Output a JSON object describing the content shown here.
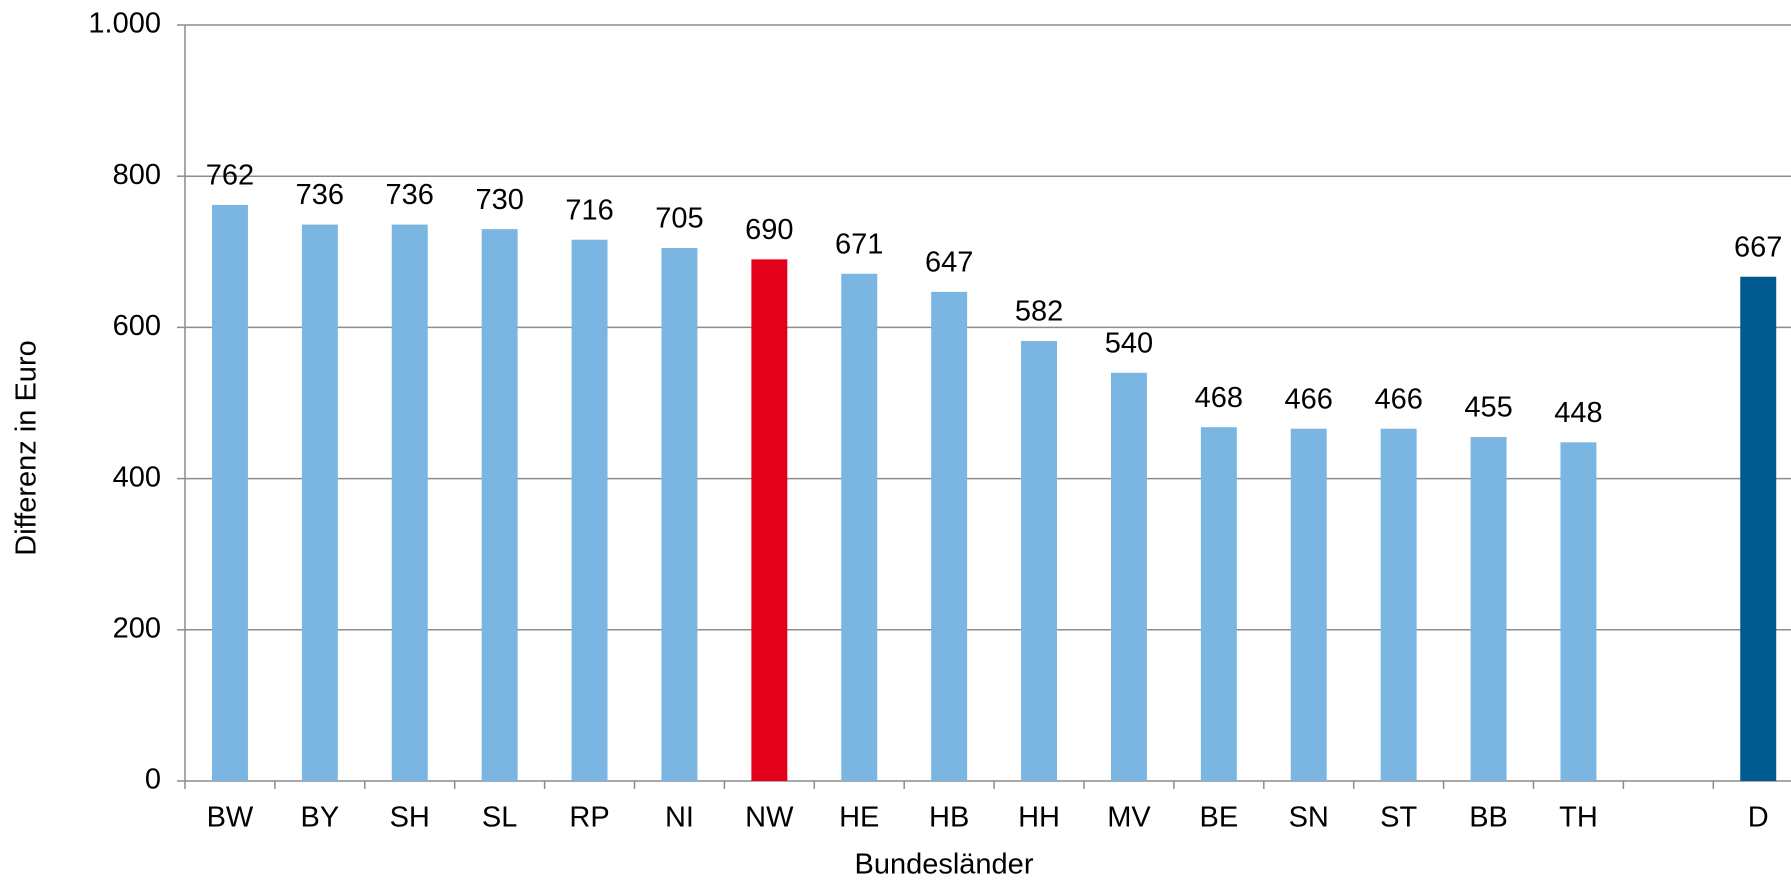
{
  "chart_data": {
    "type": "bar",
    "categories": [
      "BW",
      "BY",
      "SH",
      "SL",
      "RP",
      "NI",
      "NW",
      "HE",
      "HB",
      "HH",
      "MV",
      "BE",
      "SN",
      "ST",
      "BB",
      "TH",
      null,
      "D"
    ],
    "values": [
      762,
      736,
      736,
      730,
      716,
      705,
      690,
      671,
      647,
      582,
      540,
      468,
      466,
      466,
      455,
      448,
      null,
      667
    ],
    "colors": [
      "#7ab6e1",
      "#7ab6e1",
      "#7ab6e1",
      "#7ab6e1",
      "#7ab6e1",
      "#7ab6e1",
      "#e2001a",
      "#7ab6e1",
      "#7ab6e1",
      "#7ab6e1",
      "#7ab6e1",
      "#7ab6e1",
      "#7ab6e1",
      "#7ab6e1",
      "#7ab6e1",
      "#7ab6e1",
      "#7ab6e1",
      "#005a8f"
    ],
    "ylim": [
      0,
      1000
    ],
    "yticks": [
      0,
      200,
      400,
      600,
      800,
      {
        "value": 1000,
        "label": "1.000"
      }
    ],
    "grid": true,
    "x_label": "Bundesländer",
    "y_label": "Differenz in Euro"
  }
}
